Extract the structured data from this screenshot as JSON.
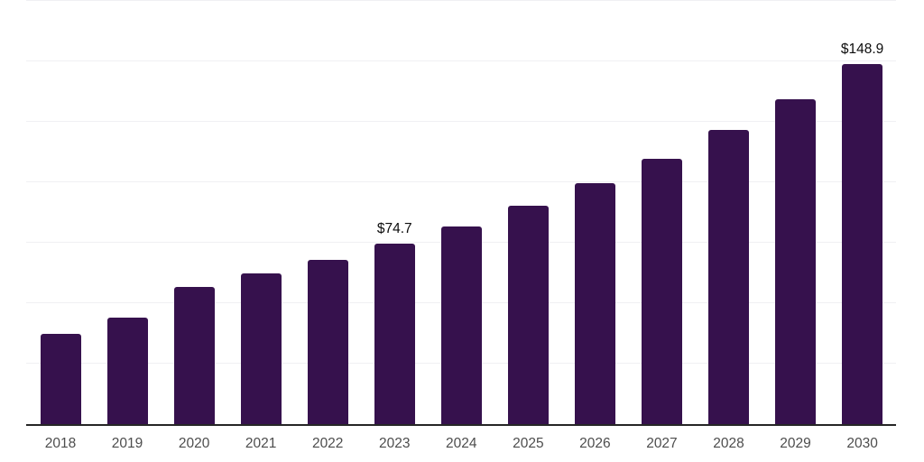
{
  "chart_data": {
    "type": "bar",
    "title": "",
    "xlabel": "",
    "ylabel": "",
    "categories": [
      "2018",
      "2019",
      "2020",
      "2021",
      "2022",
      "2023",
      "2024",
      "2025",
      "2026",
      "2027",
      "2028",
      "2029",
      "2030"
    ],
    "values": [
      37.4,
      44.1,
      56.8,
      62.4,
      68.0,
      74.7,
      81.8,
      90.3,
      99.6,
      109.7,
      121.5,
      134.3,
      148.9
    ],
    "data_labels": [
      {
        "category": "2023",
        "text": "$74.7"
      },
      {
        "category": "2030",
        "text": "$148.9"
      }
    ],
    "ylim": [
      0,
      175
    ],
    "grid": true,
    "grid_step": 25,
    "legend": false,
    "colors": {
      "bar": "#36114d",
      "gridline": "#f0f0f3",
      "axis_line": "#262626",
      "tick_label": "#4d4d4d",
      "data_label": "#0d0d0d",
      "background": "#ffffff"
    }
  }
}
